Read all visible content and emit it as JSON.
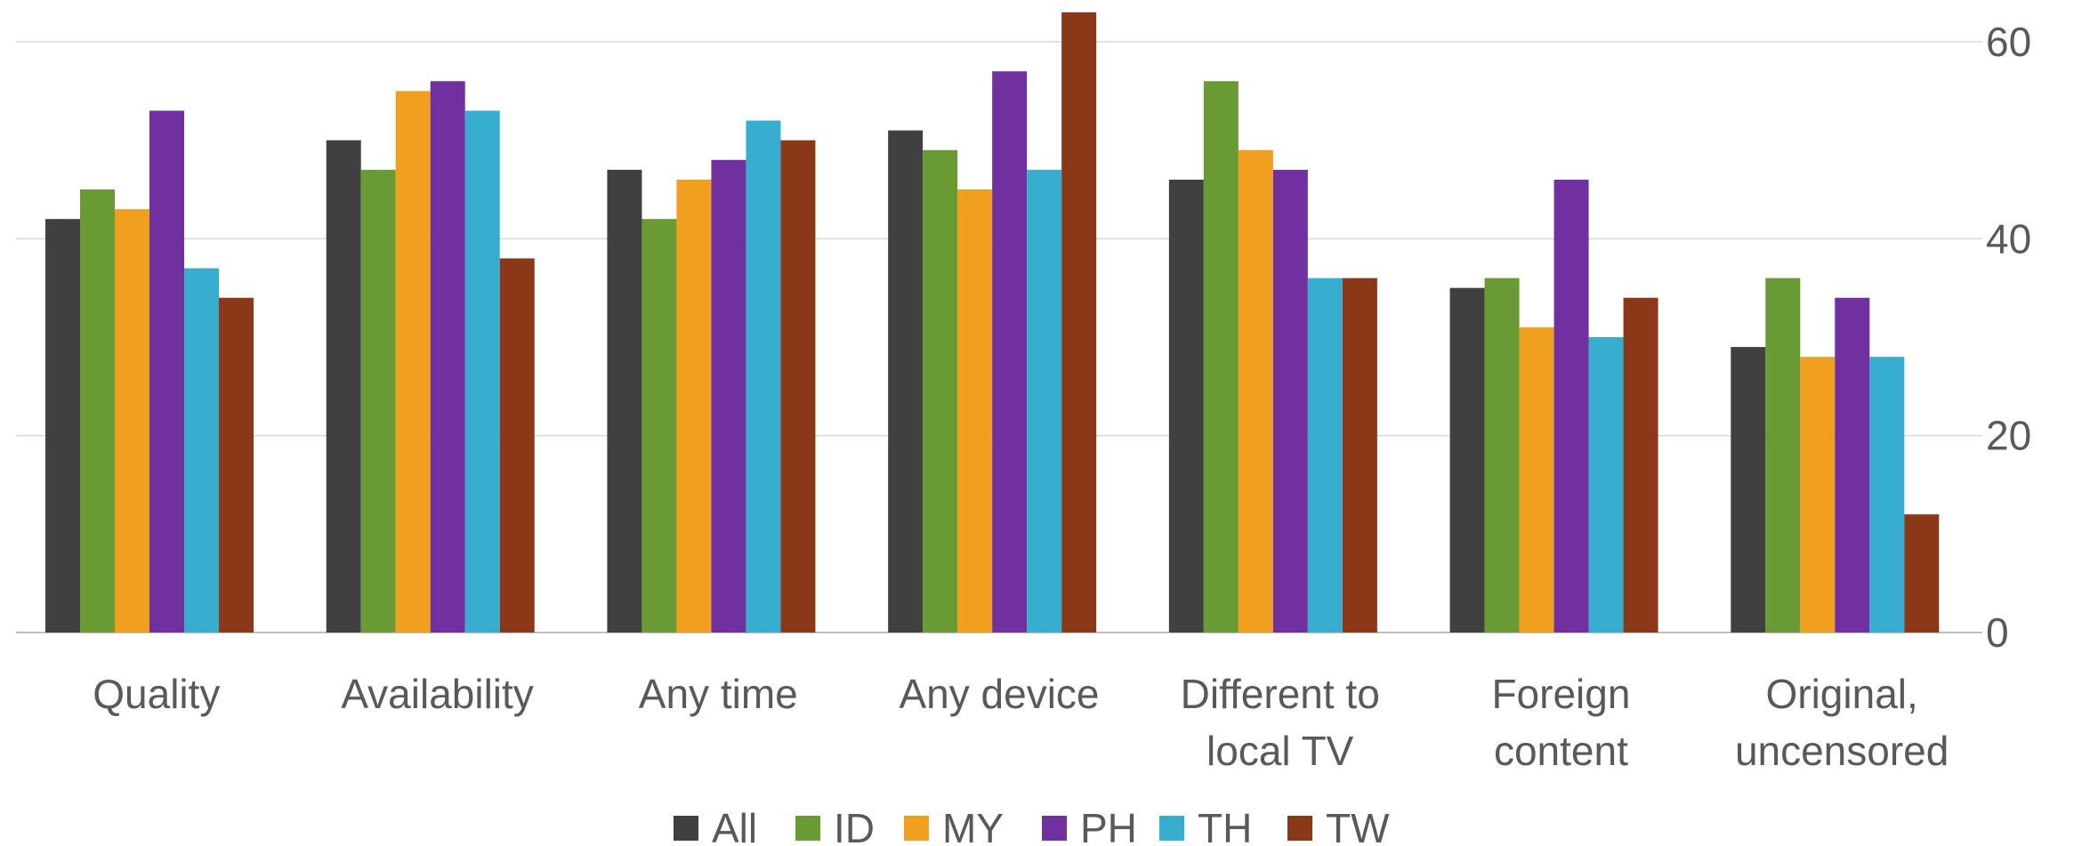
{
  "chart_data": {
    "type": "bar",
    "title": "",
    "xlabel": "",
    "ylabel": "",
    "ylim": [
      0,
      60
    ],
    "yticks": [
      0,
      20,
      40,
      60
    ],
    "y_axis_side": "right",
    "grid": true,
    "legend_position": "bottom",
    "categories": [
      [
        "Quality"
      ],
      [
        "Availability"
      ],
      [
        "Any time"
      ],
      [
        "Any device"
      ],
      [
        "Different to",
        "local TV"
      ],
      [
        "Foreign",
        "content"
      ],
      [
        "Original,",
        "uncensored"
      ]
    ],
    "series": [
      {
        "name": "All",
        "color": "#404040",
        "values": [
          42,
          50,
          47,
          51,
          46,
          35,
          29
        ]
      },
      {
        "name": "ID",
        "color": "#6a9a33",
        "values": [
          45,
          47,
          42,
          49,
          56,
          36,
          36
        ]
      },
      {
        "name": "MY",
        "color": "#f19f1f",
        "values": [
          43,
          55,
          46,
          45,
          49,
          31,
          28
        ]
      },
      {
        "name": "PH",
        "color": "#7030a0",
        "values": [
          53,
          56,
          48,
          57,
          47,
          46,
          34
        ]
      },
      {
        "name": "TH",
        "color": "#37aed0",
        "values": [
          37,
          53,
          52,
          47,
          36,
          30,
          28
        ]
      },
      {
        "name": "TW",
        "color": "#8b3819",
        "values": [
          34,
          38,
          50,
          63,
          36,
          34,
          12
        ]
      }
    ]
  }
}
